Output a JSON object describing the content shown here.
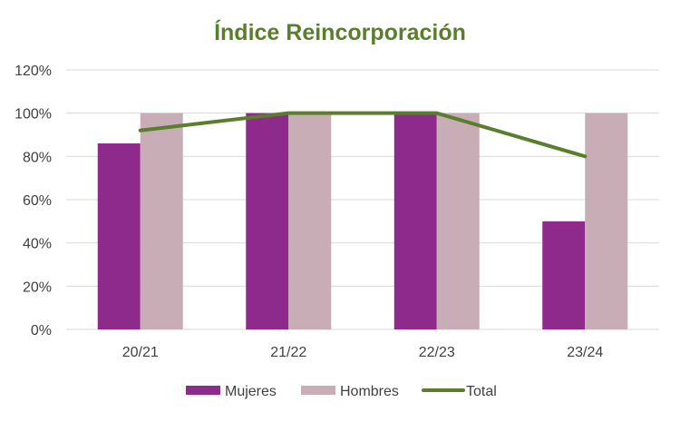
{
  "chart_data": {
    "type": "bar",
    "title": "Índice Reincorporación",
    "categories": [
      "20/21",
      "21/22",
      "22/23",
      "23/24"
    ],
    "series": [
      {
        "name": "Mujeres",
        "kind": "bar",
        "color": "#8E2A8B",
        "values": [
          86,
          100,
          100,
          50
        ]
      },
      {
        "name": "Hombres",
        "kind": "bar",
        "color": "#C8ADB6",
        "values": [
          100,
          100,
          100,
          100
        ]
      },
      {
        "name": "Total",
        "kind": "line",
        "color": "#5A7F2C",
        "values": [
          92,
          100,
          100,
          80
        ]
      }
    ],
    "yaxis": {
      "min": 0,
      "max": 120,
      "step": 20,
      "tick_labels": [
        "0%",
        "20%",
        "40%",
        "60%",
        "80%",
        "100%",
        "120%"
      ]
    },
    "grid": true,
    "legend_position": "bottom",
    "colors": {
      "title": "#5A7F2C",
      "axis_text": "#404040",
      "grid": "#D9D9D9"
    }
  }
}
